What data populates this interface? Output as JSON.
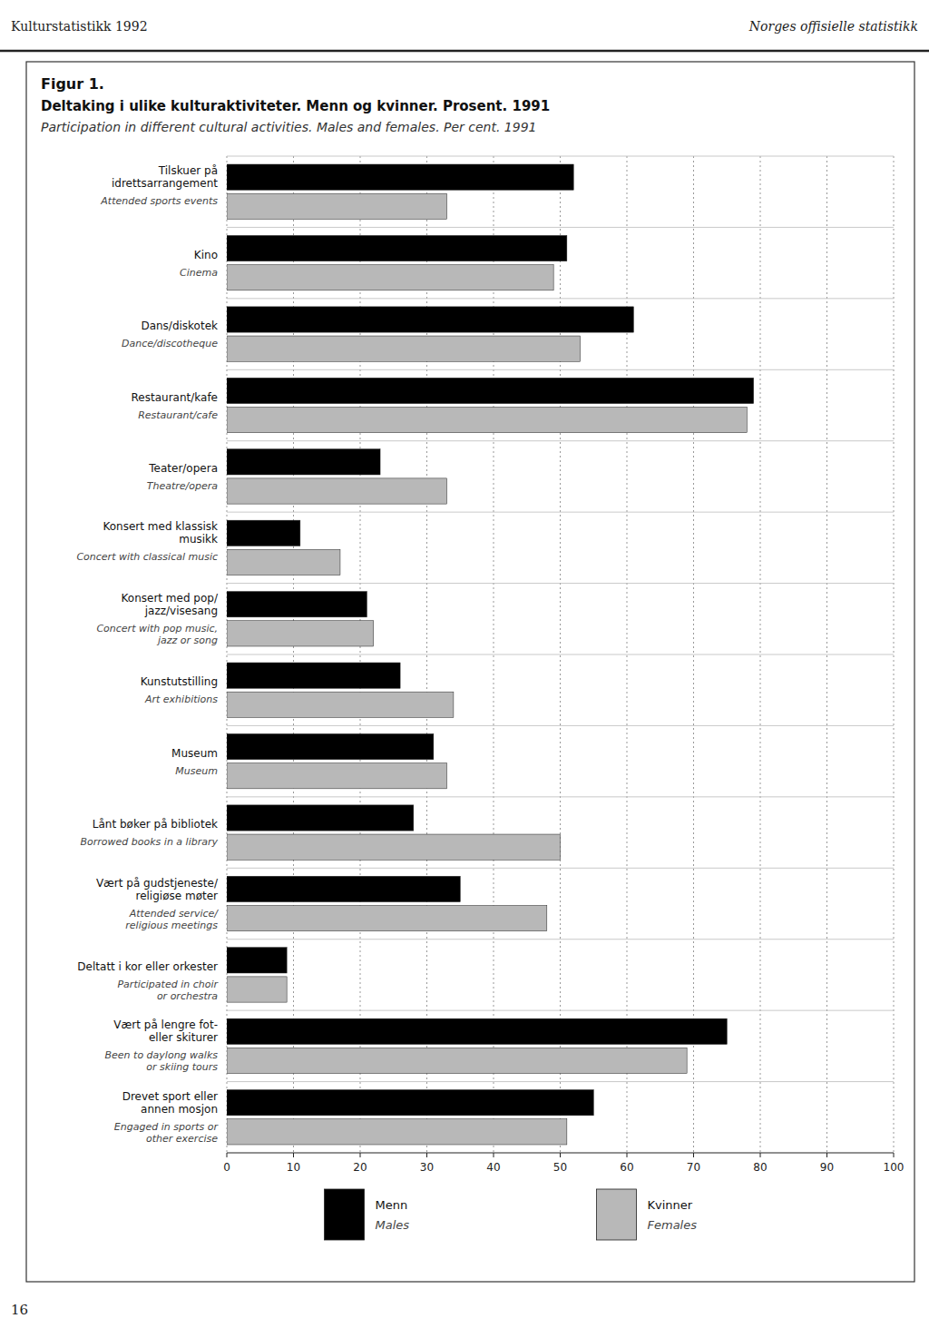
{
  "chart_data": {
    "type": "bar",
    "orientation": "horizontal",
    "title": "Deltaking i ulike kulturaktiviteter. Menn og kvinner. Prosent. 1991",
    "subtitle": "Participation in different cultural activities. Males and females. Per cent.  1991",
    "annotations": [
      "Figur 1.",
      "Kulturstatistikk 1992",
      "Norges offisielle statistikk",
      "16"
    ],
    "categories": [
      "Tilskuer på\nidrettsarrangement",
      "Kino",
      "Dans/diskotek",
      "Restaurant/kafe",
      "Teater/opera",
      "Konsert med klassisk\nmusikk",
      "Konsert med pop/\njazz/visesang",
      "Kunstutstilling",
      "Museum",
      "Lånt bøker på bibliotek",
      "Vært på gudstjeneste/\nreligiøse møter",
      "Deltatt i kor eller orkester",
      "Vært på lengre fot-\neller skiturer",
      "Drevet sport eller\nannen mosjon"
    ],
    "categories_en": [
      "Attended sports events",
      "Cinema",
      "Dance/discotheque",
      "Restaurant/cafe",
      "Theatre/opera",
      "Concert with classical music",
      "Concert with pop music,\njazz or song",
      "Art exhibitions",
      "Museum",
      "Borrowed books in a library",
      "Attended service/\nreligious meetings",
      "Participated in choir\nor orchestra",
      "Been to daylong walks\nor skiing tours",
      "Engaged in sports or\nother exercise"
    ],
    "series": [
      {
        "name": "Menn",
        "name_en": "Males",
        "color": "#000000",
        "values": [
          52,
          51,
          61,
          79,
          23,
          11,
          21,
          26,
          31,
          28,
          35,
          9,
          75,
          55
        ]
      },
      {
        "name": "Kvinner",
        "name_en": "Females",
        "color": "#b8b8b8",
        "values": [
          33,
          49,
          53,
          78,
          33,
          17,
          22,
          34,
          33,
          50,
          48,
          9,
          69,
          51
        ]
      }
    ],
    "xlim": [
      0,
      100
    ],
    "xticks": [
      0,
      10,
      20,
      30,
      40,
      50,
      60,
      70,
      80,
      90,
      100
    ],
    "grid": true,
    "legend": "bottom"
  }
}
